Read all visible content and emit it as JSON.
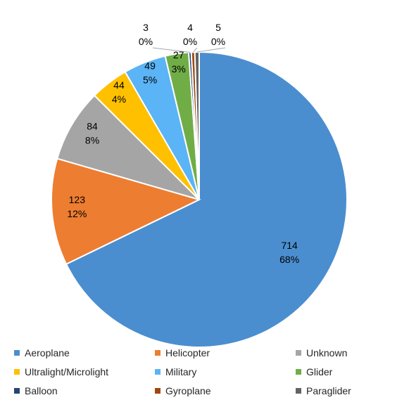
{
  "chart_data": {
    "type": "pie",
    "title": "",
    "slices": [
      {
        "name": "Aeroplane",
        "value": 714,
        "percent": "68%",
        "color": "#4a8ecf"
      },
      {
        "name": "Helicopter",
        "value": 123,
        "percent": "12%",
        "color": "#ed7d31"
      },
      {
        "name": "Unknown",
        "value": 84,
        "percent": "8%",
        "color": "#a5a5a5"
      },
      {
        "name": "Ultralight/Microlight",
        "value": 44,
        "percent": "4%",
        "color": "#ffc000"
      },
      {
        "name": "Military",
        "value": 49,
        "percent": "5%",
        "color": "#5ab4f5"
      },
      {
        "name": "Glider",
        "value": 27,
        "percent": "3%",
        "color": "#70ad47"
      },
      {
        "name": "Balloon",
        "value": 3,
        "percent": "0%",
        "color": "#264478"
      },
      {
        "name": "Gyroplane",
        "value": 4,
        "percent": "0%",
        "color": "#9e480e"
      },
      {
        "name": "Paraglider",
        "value": 5,
        "percent": "0%",
        "color": "#636363"
      }
    ],
    "legend_position": "bottom",
    "data_labels": "value and percent"
  }
}
